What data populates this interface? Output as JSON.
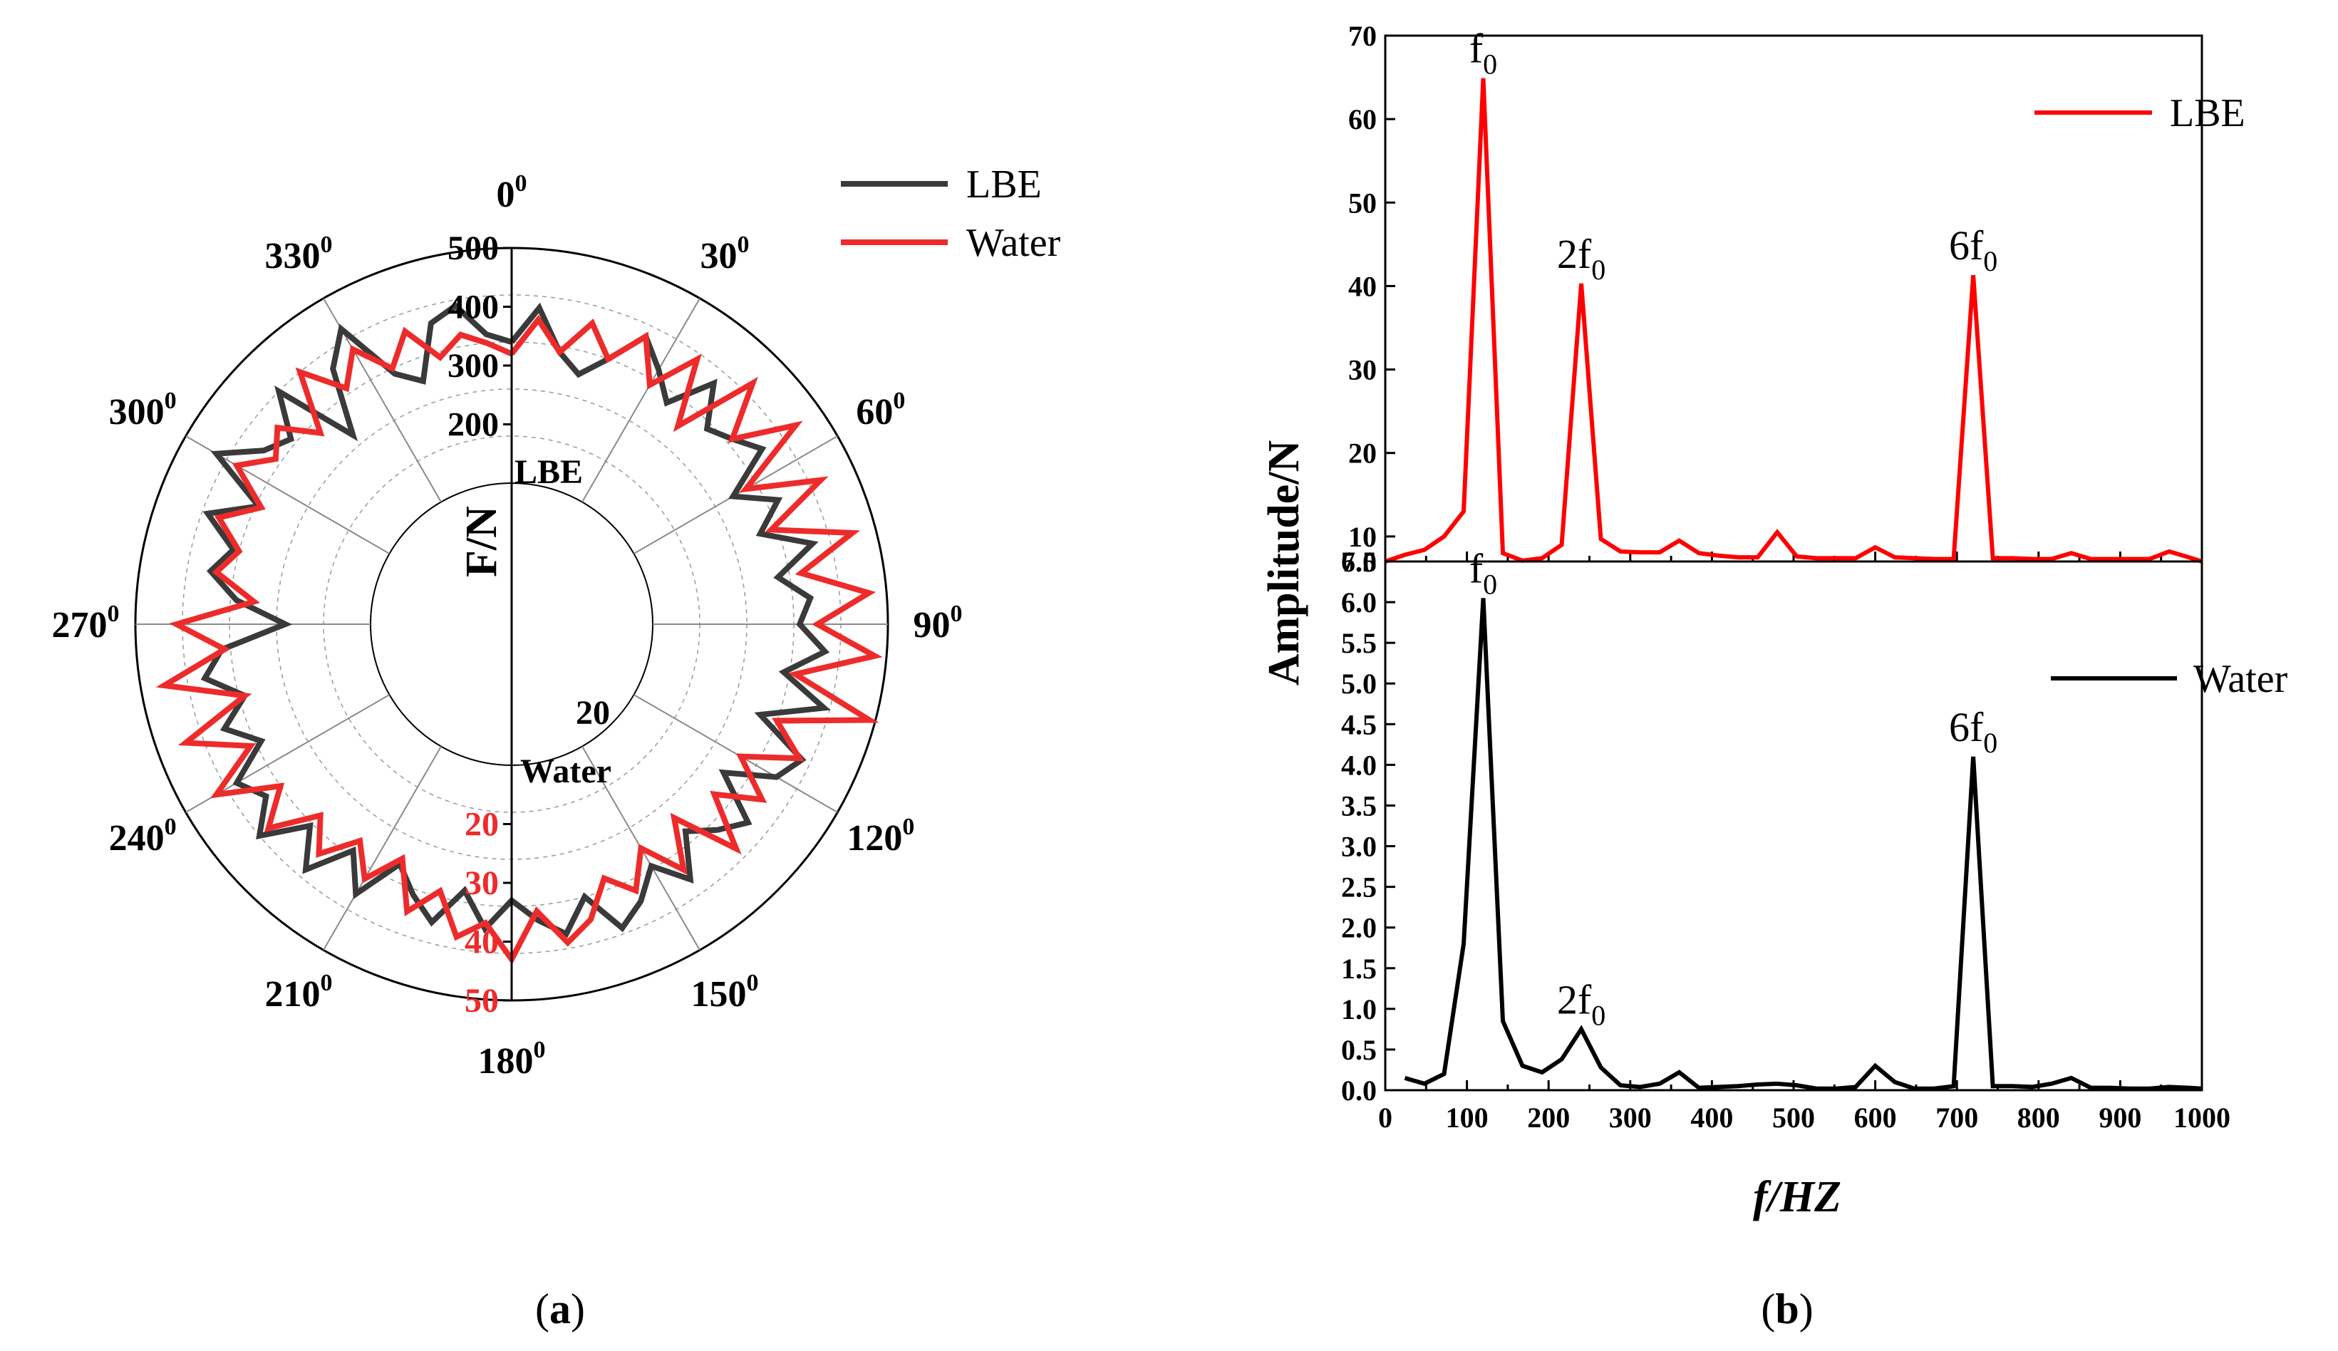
{
  "panel_a": {
    "label_prefix": "(",
    "label_letter": "a",
    "label_suffix": ")",
    "angle_labels": [
      {
        "deg": 0,
        "base": "0",
        "sup": "0"
      },
      {
        "deg": 30,
        "base": "30",
        "sup": "0"
      },
      {
        "deg": 60,
        "base": "60",
        "sup": "0"
      },
      {
        "deg": 90,
        "base": "90",
        "sup": "0"
      },
      {
        "deg": 120,
        "base": "120",
        "sup": "0"
      },
      {
        "deg": 150,
        "base": "150",
        "sup": "0"
      },
      {
        "deg": 180,
        "base": "180",
        "sup": "0"
      },
      {
        "deg": 210,
        "base": "210",
        "sup": "0"
      },
      {
        "deg": 240,
        "base": "240",
        "sup": "0"
      },
      {
        "deg": 270,
        "base": "270",
        "sup": "0"
      },
      {
        "deg": 300,
        "base": "300",
        "sup": "0"
      },
      {
        "deg": 330,
        "base": "330",
        "sup": "0"
      }
    ],
    "axis_title": "F/N",
    "lbe_axis_label": "LBE",
    "lbe_ticks": [
      "200",
      "300",
      "400",
      "500"
    ],
    "water_axis_label": "Water",
    "water_ticks": [
      "20",
      "30",
      "40",
      "50"
    ],
    "water_extra_tick": "20",
    "legend": [
      {
        "name": "LBE",
        "color": "#3a3a3a"
      },
      {
        "name": "Water",
        "color": "#ee2b2b"
      }
    ]
  },
  "panel_b": {
    "label_prefix": "(",
    "label_letter": "b",
    "label_suffix": ")",
    "ylabel": "Amplitude/N",
    "xlabel": "f/HZ"
  },
  "chart_data": [
    {
      "type": "line",
      "subtype": "polar",
      "title": "",
      "radial_label": "F/N",
      "series": [
        {
          "name": "LBE",
          "color": "#3a3a3a",
          "radial_range": [
            100,
            500
          ],
          "angles": [
            0,
            5,
            10,
            15,
            20,
            25,
            30,
            35,
            40,
            45,
            50,
            55,
            60,
            65,
            70,
            75,
            80,
            85,
            90,
            95,
            100,
            105,
            110,
            115,
            120,
            125,
            130,
            135,
            140,
            145,
            150,
            155,
            160,
            165,
            170,
            175,
            180,
            185,
            190,
            195,
            200,
            205,
            210,
            215,
            220,
            225,
            230,
            235,
            240,
            245,
            250,
            255,
            260,
            265,
            270,
            275,
            280,
            285,
            290,
            295,
            300,
            305,
            310,
            315,
            320,
            325,
            330,
            335,
            340,
            345,
            350,
            355
          ],
          "values": [
            340,
            400,
            330,
            300,
            340,
            400,
            360,
            320,
            395,
            330,
            350,
            380,
            295,
            360,
            310,
            390,
            320,
            370,
            350,
            395,
            330,
            410,
            310,
            405,
            380,
            300,
            385,
            355,
            320,
            390,
            335,
            380,
            410,
            340,
            395,
            365,
            330,
            380,
            320,
            385,
            350,
            310,
            390,
            330,
            405,
            345,
            420,
            370,
            400,
            330,
            380,
            330,
            390,
            355,
            245,
            330,
            380,
            350,
            410,
            335,
            440,
            375,
            350,
            420,
            280,
            390,
            440,
            330,
            300,
            390,
            410,
            355
          ]
        },
        {
          "name": "Water",
          "color": "#ee2b2b",
          "radial_range": [
            10,
            50
          ],
          "angles": [
            0,
            5,
            10,
            15,
            20,
            25,
            30,
            35,
            40,
            45,
            50,
            55,
            60,
            65,
            70,
            75,
            80,
            85,
            90,
            95,
            100,
            105,
            110,
            115,
            120,
            125,
            130,
            135,
            140,
            145,
            150,
            155,
            160,
            165,
            170,
            175,
            180,
            185,
            190,
            195,
            200,
            205,
            210,
            215,
            220,
            225,
            230,
            235,
            240,
            245,
            250,
            255,
            260,
            265,
            270,
            275,
            280,
            285,
            290,
            295,
            300,
            305,
            310,
            315,
            320,
            325,
            330,
            335,
            340,
            345,
            350,
            355
          ],
          "values": [
            32,
            38,
            33,
            39,
            34,
            40,
            33,
            41,
            30,
            44,
            35,
            45,
            32,
            44,
            33,
            46,
            36,
            47,
            38,
            48,
            35,
            49,
            34,
            40,
            31,
            38,
            31,
            40,
            29,
            37,
            30,
            36,
            32,
            38,
            41,
            35,
            43,
            37,
            40,
            33,
            38,
            30,
            36,
            31,
            37,
            32,
            40,
            34,
            44,
            35,
            45,
            33,
            46,
            35,
            43,
            30,
            37,
            34,
            39,
            33,
            40,
            35,
            38,
            32,
            42,
            35,
            40,
            34,
            39,
            33,
            36,
            34
          ]
        }
      ]
    },
    {
      "type": "line",
      "title": "",
      "xlabel": "",
      "ylabel": "Amplitude/N",
      "xlim": [
        0,
        1000
      ],
      "ylim": [
        7.0,
        70
      ],
      "yticks": [
        7.0,
        10,
        20,
        30,
        40,
        50,
        60,
        70
      ],
      "legend": "top-right",
      "annotations": [
        {
          "text": "f",
          "sub": "0",
          "x": 120,
          "y": 64.9
        },
        {
          "text": "2f",
          "sub": "0",
          "x": 240,
          "y": 40.3
        },
        {
          "text": "6f",
          "sub": "0",
          "x": 720,
          "y": 41.3
        }
      ],
      "series": [
        {
          "name": "LBE",
          "color": "#ff0000",
          "x": [
            0,
            24,
            48,
            72,
            96,
            120,
            144,
            168,
            192,
            216,
            240,
            264,
            288,
            312,
            336,
            360,
            384,
            408,
            432,
            456,
            480,
            504,
            528,
            552,
            576,
            600,
            624,
            648,
            672,
            696,
            720,
            744,
            768,
            792,
            816,
            840,
            864,
            888,
            912,
            936,
            960,
            984,
            1000
          ],
          "y": [
            7.0,
            7.8,
            8.4,
            10.0,
            13.0,
            64.9,
            8.0,
            7.1,
            7.4,
            9.0,
            40.3,
            9.7,
            8.2,
            8.1,
            8.1,
            9.5,
            8.0,
            7.7,
            7.5,
            7.5,
            10.5,
            7.6,
            7.4,
            7.4,
            7.4,
            8.7,
            7.5,
            7.4,
            7.3,
            7.3,
            41.3,
            7.4,
            7.4,
            7.3,
            7.3,
            8.0,
            7.3,
            7.3,
            7.3,
            7.3,
            8.2,
            7.5,
            7.0
          ]
        }
      ]
    },
    {
      "type": "line",
      "title": "",
      "xlabel": "f/HZ",
      "ylabel": "Amplitude/N",
      "xlim": [
        0,
        1000
      ],
      "ylim": [
        0.0,
        6.5
      ],
      "xticks": [
        0,
        100,
        200,
        300,
        400,
        500,
        600,
        700,
        800,
        900,
        1000
      ],
      "yticks": [
        0.0,
        0.5,
        1.0,
        1.5,
        2.0,
        2.5,
        3.0,
        3.5,
        4.0,
        4.5,
        5.0,
        5.5,
        6.0,
        6.5
      ],
      "legend": "top-right",
      "annotations": [
        {
          "text": "f",
          "sub": "0",
          "x": 120,
          "y": 6.05
        },
        {
          "text": "2f",
          "sub": "0",
          "x": 240,
          "y": 0.75
        },
        {
          "text": "6f",
          "sub": "0",
          "x": 720,
          "y": 4.1
        }
      ],
      "series": [
        {
          "name": "Water",
          "color": "#000000",
          "x": [
            24,
            48,
            72,
            96,
            120,
            144,
            168,
            192,
            216,
            240,
            264,
            288,
            312,
            336,
            360,
            384,
            408,
            432,
            456,
            480,
            504,
            528,
            552,
            576,
            600,
            624,
            648,
            672,
            696,
            720,
            744,
            768,
            792,
            816,
            840,
            864,
            888,
            912,
            936,
            960,
            984,
            1000
          ],
          "y": [
            0.15,
            0.08,
            0.2,
            1.8,
            6.05,
            0.85,
            0.3,
            0.22,
            0.38,
            0.75,
            0.28,
            0.06,
            0.04,
            0.08,
            0.22,
            0.03,
            0.04,
            0.05,
            0.07,
            0.08,
            0.06,
            0.02,
            0.02,
            0.04,
            0.3,
            0.1,
            0.02,
            0.02,
            0.05,
            4.1,
            0.05,
            0.05,
            0.04,
            0.08,
            0.15,
            0.03,
            0.03,
            0.02,
            0.02,
            0.04,
            0.03,
            0.02
          ]
        }
      ]
    }
  ]
}
